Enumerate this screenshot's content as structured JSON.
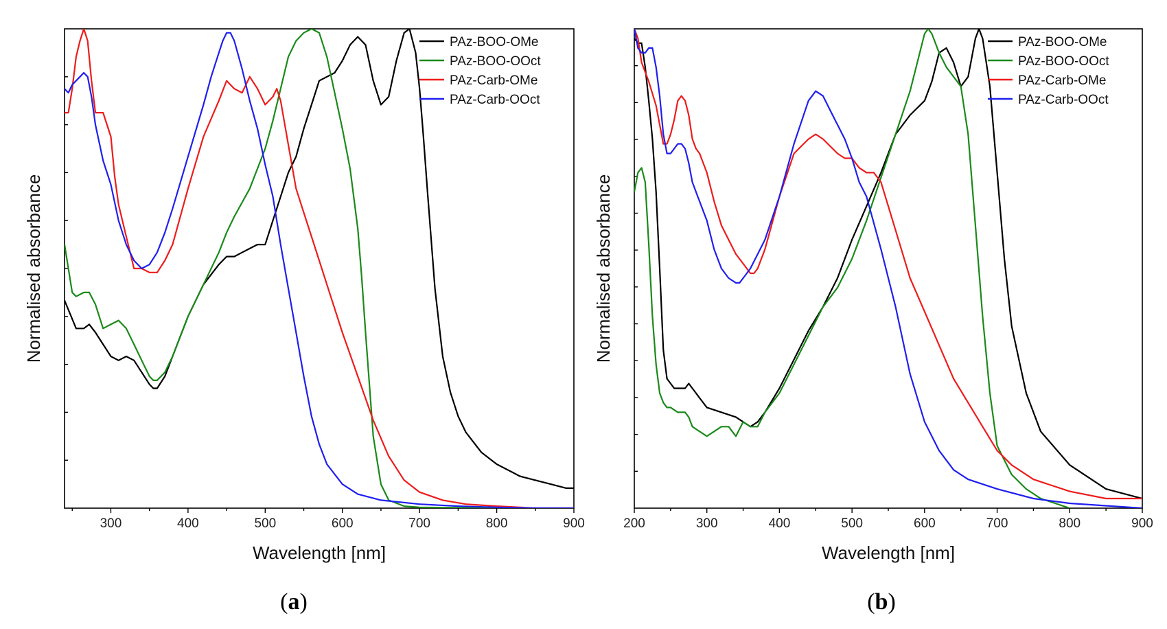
{
  "colors": {
    "PAz-BOO-OMe": "#000000",
    "PAz-BOO-OOct": "#1a8a1a",
    "PAz-Carb-OMe": "#ee1c1c",
    "PAz-Carb-OOct": "#1f1ff0"
  },
  "chart_data": [
    {
      "type": "line",
      "caption": "a",
      "xlabel": "Wavelength [nm]",
      "ylabel": "Normalised absorbance",
      "xlim": [
        240,
        900
      ],
      "ylim": [
        0,
        1.2
      ],
      "xticks": [
        300,
        400,
        500,
        600,
        700,
        800,
        900
      ],
      "legend": [
        "PAz-BOO-OMe",
        "PAz-BOO-OOct",
        "PAz-Carb-OMe",
        "PAz-Carb-OOct"
      ],
      "legend_position": "top-right",
      "series": [
        {
          "name": "PAz-BOO-OMe",
          "x": [
            240,
            255,
            265,
            272,
            280,
            290,
            300,
            310,
            320,
            330,
            340,
            350,
            355,
            360,
            370,
            380,
            400,
            420,
            440,
            450,
            460,
            470,
            480,
            490,
            500,
            510,
            520,
            530,
            540,
            550,
            560,
            570,
            580,
            590,
            600,
            610,
            620,
            630,
            640,
            650,
            660,
            670,
            680,
            687,
            695,
            700,
            705,
            710,
            720,
            730,
            740,
            750,
            760,
            780,
            800,
            820,
            830,
            850,
            870,
            890,
            900
          ],
          "y": [
            0.52,
            0.45,
            0.45,
            0.46,
            0.44,
            0.41,
            0.38,
            0.37,
            0.38,
            0.37,
            0.34,
            0.31,
            0.3,
            0.3,
            0.33,
            0.38,
            0.48,
            0.56,
            0.61,
            0.63,
            0.63,
            0.64,
            0.65,
            0.66,
            0.66,
            0.72,
            0.78,
            0.84,
            0.88,
            0.95,
            1.01,
            1.07,
            1.08,
            1.09,
            1.12,
            1.16,
            1.18,
            1.16,
            1.07,
            1.01,
            1.03,
            1.12,
            1.19,
            1.2,
            1.14,
            1.05,
            0.93,
            0.8,
            0.55,
            0.38,
            0.29,
            0.23,
            0.19,
            0.14,
            0.11,
            0.09,
            0.08,
            0.07,
            0.06,
            0.05,
            0.05
          ]
        },
        {
          "name": "PAz-BOO-OOct",
          "x": [
            240,
            250,
            255,
            265,
            272,
            280,
            290,
            300,
            310,
            320,
            330,
            340,
            350,
            355,
            360,
            370,
            380,
            400,
            420,
            440,
            450,
            460,
            480,
            500,
            510,
            520,
            530,
            540,
            550,
            560,
            570,
            580,
            590,
            600,
            610,
            620,
            625,
            630,
            635,
            640,
            650,
            660,
            680,
            700,
            750,
            800,
            900
          ],
          "y": [
            0.66,
            0.54,
            0.53,
            0.54,
            0.54,
            0.51,
            0.45,
            0.46,
            0.47,
            0.45,
            0.41,
            0.37,
            0.33,
            0.32,
            0.32,
            0.34,
            0.38,
            0.48,
            0.56,
            0.64,
            0.69,
            0.73,
            0.8,
            0.9,
            0.97,
            1.05,
            1.13,
            1.17,
            1.19,
            1.2,
            1.19,
            1.13,
            1.04,
            0.95,
            0.85,
            0.7,
            0.58,
            0.44,
            0.31,
            0.18,
            0.06,
            0.02,
            0.005,
            0.002,
            0.001,
            0.0,
            0.0
          ]
        },
        {
          "name": "PAz-Carb-OMe",
          "x": [
            240,
            245,
            250,
            255,
            260,
            265,
            270,
            275,
            280,
            290,
            300,
            305,
            310,
            320,
            330,
            340,
            350,
            360,
            370,
            380,
            400,
            420,
            440,
            450,
            460,
            470,
            480,
            490,
            500,
            510,
            515,
            520,
            530,
            540,
            550,
            560,
            580,
            600,
            620,
            640,
            660,
            680,
            700,
            730,
            760,
            800,
            850,
            900
          ],
          "y": [
            0.99,
            0.99,
            1.05,
            1.13,
            1.17,
            1.2,
            1.17,
            1.07,
            0.99,
            0.99,
            0.93,
            0.83,
            0.76,
            0.68,
            0.6,
            0.6,
            0.59,
            0.59,
            0.62,
            0.66,
            0.8,
            0.93,
            1.02,
            1.07,
            1.05,
            1.04,
            1.08,
            1.05,
            1.01,
            1.03,
            1.05,
            1.02,
            0.91,
            0.8,
            0.74,
            0.68,
            0.56,
            0.44,
            0.33,
            0.22,
            0.13,
            0.07,
            0.04,
            0.02,
            0.01,
            0.005,
            0.0,
            0.0
          ]
        },
        {
          "name": "PAz-Carb-OOct",
          "x": [
            240,
            245,
            250,
            260,
            265,
            270,
            275,
            280,
            290,
            300,
            310,
            320,
            330,
            340,
            350,
            360,
            370,
            380,
            400,
            420,
            430,
            440,
            445,
            450,
            455,
            460,
            470,
            480,
            490,
            500,
            510,
            520,
            530,
            540,
            550,
            560,
            570,
            580,
            600,
            620,
            650,
            700,
            750,
            800,
            850,
            900
          ],
          "y": [
            1.05,
            1.04,
            1.06,
            1.08,
            1.09,
            1.08,
            1.03,
            0.96,
            0.87,
            0.81,
            0.72,
            0.66,
            0.62,
            0.6,
            0.61,
            0.64,
            0.69,
            0.75,
            0.88,
            1.01,
            1.08,
            1.14,
            1.17,
            1.19,
            1.19,
            1.17,
            1.1,
            1.02,
            0.95,
            0.86,
            0.78,
            0.66,
            0.55,
            0.44,
            0.33,
            0.23,
            0.16,
            0.11,
            0.06,
            0.035,
            0.02,
            0.01,
            0.005,
            0.002,
            0.0,
            0.0
          ]
        }
      ]
    },
    {
      "type": "line",
      "caption": "b",
      "xlabel": "Wavelength [nm]",
      "ylabel": "Normalised absorbance",
      "xlim": [
        200,
        900
      ],
      "ylim": [
        0,
        1.0
      ],
      "xticks": [
        200,
        300,
        400,
        500,
        600,
        700,
        800,
        900
      ],
      "legend": [
        "PAz-BOO-OMe",
        "PAz-BOO-OOct",
        "PAz-Carb-OMe",
        "PAz-Carb-OOct"
      ],
      "legend_position": "top-right",
      "series": [
        {
          "name": "PAz-BOO-OMe",
          "x": [
            200,
            205,
            210,
            215,
            220,
            225,
            230,
            235,
            240,
            245,
            250,
            255,
            260,
            270,
            275,
            280,
            290,
            300,
            320,
            340,
            350,
            360,
            370,
            380,
            400,
            420,
            440,
            460,
            480,
            500,
            520,
            540,
            560,
            580,
            600,
            610,
            620,
            630,
            640,
            650,
            660,
            670,
            675,
            680,
            690,
            700,
            710,
            720,
            740,
            760,
            800,
            850,
            900
          ],
          "y": [
            0.98,
            0.97,
            0.97,
            0.92,
            0.85,
            0.77,
            0.66,
            0.5,
            0.33,
            0.27,
            0.26,
            0.25,
            0.25,
            0.25,
            0.26,
            0.25,
            0.23,
            0.21,
            0.2,
            0.19,
            0.18,
            0.17,
            0.18,
            0.2,
            0.25,
            0.31,
            0.37,
            0.42,
            0.48,
            0.56,
            0.63,
            0.7,
            0.78,
            0.82,
            0.85,
            0.89,
            0.95,
            0.96,
            0.93,
            0.88,
            0.9,
            0.98,
            1.0,
            0.98,
            0.88,
            0.7,
            0.52,
            0.38,
            0.24,
            0.16,
            0.09,
            0.04,
            0.02
          ]
        },
        {
          "name": "PAz-BOO-OOct",
          "x": [
            200,
            205,
            210,
            215,
            220,
            225,
            230,
            235,
            240,
            245,
            250,
            260,
            270,
            275,
            280,
            290,
            300,
            310,
            320,
            330,
            335,
            340,
            350,
            360,
            370,
            380,
            400,
            420,
            440,
            460,
            480,
            500,
            520,
            540,
            560,
            580,
            590,
            600,
            605,
            610,
            620,
            630,
            640,
            650,
            660,
            670,
            680,
            690,
            700,
            720,
            740,
            760,
            800
          ],
          "y": [
            0.66,
            0.7,
            0.71,
            0.68,
            0.55,
            0.4,
            0.3,
            0.24,
            0.22,
            0.21,
            0.21,
            0.2,
            0.2,
            0.19,
            0.17,
            0.16,
            0.15,
            0.16,
            0.17,
            0.17,
            0.16,
            0.15,
            0.18,
            0.17,
            0.17,
            0.2,
            0.24,
            0.3,
            0.36,
            0.42,
            0.46,
            0.52,
            0.6,
            0.69,
            0.78,
            0.87,
            0.93,
            0.99,
            1.0,
            0.99,
            0.95,
            0.92,
            0.9,
            0.88,
            0.78,
            0.59,
            0.4,
            0.24,
            0.13,
            0.07,
            0.04,
            0.02,
            0.0
          ]
        },
        {
          "name": "PAz-Carb-OMe",
          "x": [
            200,
            205,
            210,
            220,
            230,
            240,
            245,
            250,
            255,
            260,
            265,
            270,
            275,
            280,
            285,
            290,
            300,
            310,
            320,
            330,
            340,
            345,
            350,
            360,
            365,
            370,
            380,
            400,
            420,
            440,
            450,
            460,
            480,
            490,
            500,
            510,
            520,
            530,
            540,
            560,
            580,
            600,
            620,
            640,
            660,
            680,
            700,
            720,
            750,
            800,
            850,
            880,
            900
          ],
          "y": [
            1.0,
            0.98,
            0.93,
            0.89,
            0.84,
            0.76,
            0.76,
            0.78,
            0.81,
            0.85,
            0.86,
            0.85,
            0.82,
            0.77,
            0.75,
            0.74,
            0.7,
            0.64,
            0.59,
            0.56,
            0.53,
            0.52,
            0.51,
            0.49,
            0.49,
            0.5,
            0.54,
            0.65,
            0.74,
            0.77,
            0.78,
            0.77,
            0.74,
            0.73,
            0.73,
            0.71,
            0.7,
            0.7,
            0.68,
            0.58,
            0.48,
            0.41,
            0.34,
            0.27,
            0.22,
            0.17,
            0.12,
            0.09,
            0.06,
            0.035,
            0.02,
            0.02,
            0.02
          ]
        },
        {
          "name": "PAz-Carb-OOct",
          "x": [
            200,
            205,
            210,
            215,
            220,
            225,
            230,
            235,
            240,
            245,
            250,
            255,
            260,
            265,
            270,
            275,
            280,
            290,
            300,
            310,
            320,
            330,
            340,
            345,
            350,
            360,
            370,
            380,
            400,
            420,
            440,
            450,
            460,
            470,
            480,
            490,
            500,
            510,
            520,
            540,
            560,
            580,
            600,
            620,
            640,
            660,
            680,
            700,
            750,
            800,
            850,
            900
          ],
          "y": [
            1.0,
            0.96,
            0.95,
            0.95,
            0.96,
            0.96,
            0.92,
            0.86,
            0.78,
            0.74,
            0.74,
            0.75,
            0.76,
            0.76,
            0.75,
            0.72,
            0.68,
            0.64,
            0.6,
            0.54,
            0.5,
            0.48,
            0.47,
            0.47,
            0.48,
            0.5,
            0.53,
            0.56,
            0.65,
            0.76,
            0.85,
            0.87,
            0.86,
            0.83,
            0.8,
            0.77,
            0.73,
            0.68,
            0.65,
            0.54,
            0.42,
            0.28,
            0.18,
            0.12,
            0.08,
            0.06,
            0.05,
            0.04,
            0.02,
            0.01,
            0.005,
            0.0
          ]
        }
      ]
    }
  ]
}
